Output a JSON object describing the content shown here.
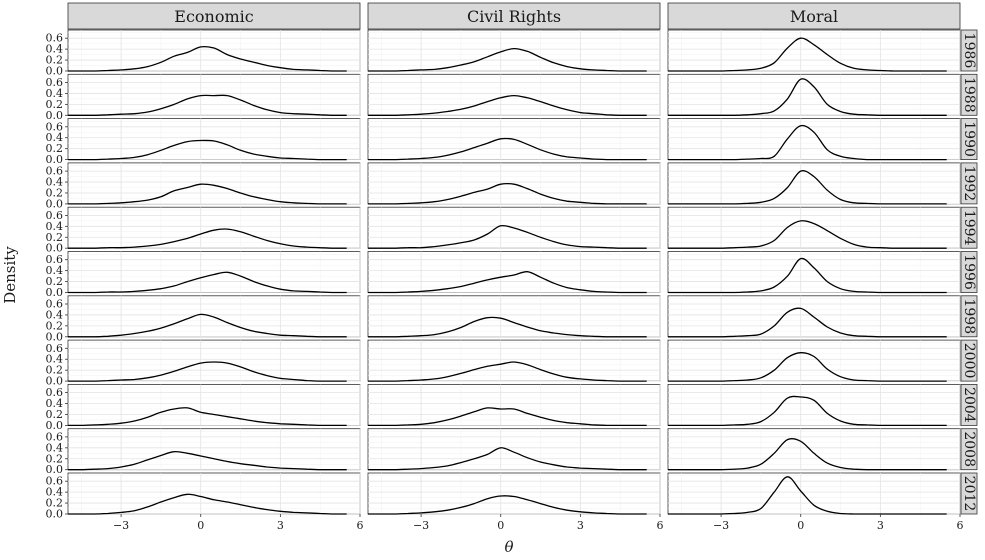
{
  "chart_data": {
    "type": "area",
    "xlabel": "θ",
    "ylabel": "Density",
    "xlim": [
      -5,
      6
    ],
    "xticks": [
      -3,
      0,
      3,
      6
    ],
    "ylim": [
      0,
      0.75
    ],
    "yticks": [
      0.0,
      0.2,
      0.4,
      0.6
    ],
    "ytick_labels": [
      "0.0",
      "0.2",
      "0.4",
      "0.6"
    ],
    "facet_columns": [
      "Economic",
      "Civil Rights",
      "Moral"
    ],
    "facet_rows": [
      "1986",
      "1988",
      "1990",
      "1992",
      "1994",
      "1996",
      "1998",
      "2000",
      "2004",
      "2008",
      "2012"
    ],
    "grid": true,
    "x": [
      -5,
      -4.5,
      -4,
      -3.5,
      -3,
      -2.5,
      -2,
      -1.5,
      -1,
      -0.5,
      0,
      0.5,
      1,
      1.5,
      2,
      2.5,
      3,
      3.5,
      4,
      4.5,
      5,
      5.5
    ],
    "panels": {
      "Economic": [
        {
          "year": "1986",
          "density": [
            0,
            0,
            0,
            0.01,
            0.02,
            0.04,
            0.08,
            0.16,
            0.27,
            0.34,
            0.44,
            0.42,
            0.3,
            0.22,
            0.16,
            0.1,
            0.06,
            0.03,
            0.02,
            0.01,
            0,
            0
          ]
        },
        {
          "year": "1988",
          "density": [
            0,
            0,
            0,
            0.01,
            0.02,
            0.03,
            0.06,
            0.12,
            0.2,
            0.3,
            0.36,
            0.36,
            0.36,
            0.28,
            0.18,
            0.1,
            0.05,
            0.03,
            0.02,
            0.01,
            0,
            0
          ]
        },
        {
          "year": "1990",
          "density": [
            0,
            0,
            0,
            0.01,
            0.02,
            0.04,
            0.09,
            0.17,
            0.26,
            0.33,
            0.35,
            0.34,
            0.27,
            0.17,
            0.1,
            0.06,
            0.03,
            0.02,
            0.01,
            0,
            0,
            0
          ]
        },
        {
          "year": "1992",
          "density": [
            0,
            0,
            0,
            0.01,
            0.02,
            0.04,
            0.07,
            0.13,
            0.24,
            0.3,
            0.36,
            0.34,
            0.28,
            0.2,
            0.13,
            0.08,
            0.04,
            0.02,
            0.01,
            0,
            0,
            0
          ]
        },
        {
          "year": "1994",
          "density": [
            0,
            0,
            0,
            0.01,
            0.01,
            0.02,
            0.04,
            0.07,
            0.12,
            0.18,
            0.26,
            0.33,
            0.35,
            0.3,
            0.22,
            0.14,
            0.08,
            0.04,
            0.02,
            0.01,
            0,
            0
          ]
        },
        {
          "year": "1996",
          "density": [
            0,
            0,
            0,
            0.01,
            0.01,
            0.02,
            0.04,
            0.07,
            0.12,
            0.2,
            0.27,
            0.33,
            0.37,
            0.3,
            0.2,
            0.12,
            0.06,
            0.03,
            0.02,
            0.01,
            0,
            0
          ]
        },
        {
          "year": "1998",
          "density": [
            0,
            0,
            0,
            0.01,
            0.03,
            0.06,
            0.1,
            0.16,
            0.24,
            0.33,
            0.41,
            0.36,
            0.26,
            0.17,
            0.1,
            0.06,
            0.03,
            0.02,
            0.01,
            0,
            0,
            0
          ]
        },
        {
          "year": "2000",
          "density": [
            0,
            0,
            0,
            0.01,
            0.02,
            0.03,
            0.06,
            0.11,
            0.18,
            0.26,
            0.33,
            0.35,
            0.33,
            0.26,
            0.17,
            0.1,
            0.05,
            0.03,
            0.01,
            0,
            0,
            0
          ]
        },
        {
          "year": "2004",
          "density": [
            0,
            0,
            0.01,
            0.02,
            0.04,
            0.08,
            0.15,
            0.24,
            0.3,
            0.32,
            0.24,
            0.2,
            0.16,
            0.12,
            0.08,
            0.05,
            0.03,
            0.02,
            0.01,
            0,
            0,
            0
          ]
        },
        {
          "year": "2008",
          "density": [
            0,
            0,
            0.01,
            0.02,
            0.05,
            0.1,
            0.18,
            0.26,
            0.33,
            0.3,
            0.25,
            0.2,
            0.15,
            0.11,
            0.08,
            0.05,
            0.03,
            0.02,
            0.01,
            0,
            0,
            0
          ]
        },
        {
          "year": "2012",
          "density": [
            0,
            0,
            0,
            0.01,
            0.03,
            0.06,
            0.13,
            0.22,
            0.3,
            0.36,
            0.32,
            0.26,
            0.22,
            0.17,
            0.12,
            0.08,
            0.05,
            0.03,
            0.02,
            0.01,
            0,
            0
          ]
        }
      ],
      "Civil Rights": [
        {
          "year": "1986",
          "density": [
            0,
            0,
            0,
            0.01,
            0.02,
            0.03,
            0.06,
            0.11,
            0.17,
            0.26,
            0.35,
            0.41,
            0.36,
            0.25,
            0.15,
            0.08,
            0.04,
            0.02,
            0.01,
            0,
            0,
            0
          ]
        },
        {
          "year": "1988",
          "density": [
            0,
            0,
            0,
            0.01,
            0.02,
            0.04,
            0.07,
            0.11,
            0.17,
            0.25,
            0.32,
            0.36,
            0.32,
            0.25,
            0.17,
            0.1,
            0.05,
            0.03,
            0.01,
            0,
            0,
            0
          ]
        },
        {
          "year": "1990",
          "density": [
            0,
            0,
            0,
            0.01,
            0.02,
            0.04,
            0.08,
            0.14,
            0.22,
            0.3,
            0.38,
            0.37,
            0.28,
            0.18,
            0.1,
            0.05,
            0.03,
            0.01,
            0,
            0,
            0,
            0
          ]
        },
        {
          "year": "1992",
          "density": [
            0,
            0,
            0,
            0.01,
            0.02,
            0.04,
            0.08,
            0.14,
            0.21,
            0.27,
            0.36,
            0.36,
            0.28,
            0.18,
            0.1,
            0.05,
            0.03,
            0.01,
            0,
            0,
            0,
            0
          ]
        },
        {
          "year": "1994",
          "density": [
            0,
            0,
            0,
            0.01,
            0.01,
            0.03,
            0.06,
            0.1,
            0.15,
            0.26,
            0.41,
            0.37,
            0.29,
            0.2,
            0.12,
            0.06,
            0.03,
            0.02,
            0.01,
            0,
            0,
            0
          ]
        },
        {
          "year": "1996",
          "density": [
            0,
            0,
            0,
            0.01,
            0.02,
            0.04,
            0.07,
            0.11,
            0.17,
            0.23,
            0.28,
            0.32,
            0.38,
            0.28,
            0.17,
            0.09,
            0.05,
            0.02,
            0.01,
            0,
            0,
            0
          ]
        },
        {
          "year": "1998",
          "density": [
            0,
            0,
            0,
            0.01,
            0.02,
            0.04,
            0.09,
            0.17,
            0.28,
            0.35,
            0.34,
            0.26,
            0.18,
            0.11,
            0.07,
            0.04,
            0.02,
            0.01,
            0,
            0,
            0,
            0
          ]
        },
        {
          "year": "2000",
          "density": [
            0,
            0,
            0,
            0.01,
            0.02,
            0.04,
            0.08,
            0.14,
            0.21,
            0.27,
            0.31,
            0.35,
            0.3,
            0.21,
            0.13,
            0.07,
            0.04,
            0.02,
            0.01,
            0,
            0,
            0
          ]
        },
        {
          "year": "2004",
          "density": [
            0,
            0,
            0,
            0.01,
            0.02,
            0.05,
            0.1,
            0.17,
            0.25,
            0.32,
            0.3,
            0.3,
            0.22,
            0.15,
            0.09,
            0.05,
            0.03,
            0.01,
            0,
            0,
            0,
            0
          ]
        },
        {
          "year": "2008",
          "density": [
            0,
            0,
            0,
            0.01,
            0.02,
            0.04,
            0.07,
            0.13,
            0.2,
            0.28,
            0.4,
            0.32,
            0.22,
            0.14,
            0.09,
            0.05,
            0.03,
            0.02,
            0.01,
            0,
            0,
            0
          ]
        },
        {
          "year": "2012",
          "density": [
            0,
            0,
            0,
            0.01,
            0.02,
            0.04,
            0.07,
            0.12,
            0.19,
            0.28,
            0.33,
            0.32,
            0.26,
            0.19,
            0.12,
            0.07,
            0.04,
            0.02,
            0.01,
            0,
            0,
            0
          ]
        }
      ],
      "Moral": [
        {
          "year": "1986",
          "density": [
            0,
            0,
            0,
            0,
            0,
            0.01,
            0.02,
            0.05,
            0.15,
            0.42,
            0.6,
            0.48,
            0.3,
            0.14,
            0.05,
            0.02,
            0.01,
            0,
            0,
            0,
            0,
            0
          ]
        },
        {
          "year": "1988",
          "density": [
            0,
            0,
            0,
            0,
            0,
            0,
            0.01,
            0.03,
            0.08,
            0.3,
            0.66,
            0.52,
            0.2,
            0.07,
            0.02,
            0.01,
            0,
            0,
            0,
            0,
            0,
            0
          ]
        },
        {
          "year": "1990",
          "density": [
            0,
            0,
            0,
            0,
            0,
            0,
            0.01,
            0.02,
            0.06,
            0.38,
            0.62,
            0.5,
            0.18,
            0.06,
            0.02,
            0,
            0,
            0,
            0,
            0,
            0,
            0
          ]
        },
        {
          "year": "1992",
          "density": [
            0,
            0,
            0,
            0,
            0,
            0,
            0.01,
            0.03,
            0.1,
            0.3,
            0.6,
            0.5,
            0.25,
            0.08,
            0.02,
            0.01,
            0,
            0,
            0,
            0,
            0,
            0
          ]
        },
        {
          "year": "1994",
          "density": [
            0,
            0,
            0,
            0,
            0,
            0.01,
            0.02,
            0.04,
            0.14,
            0.38,
            0.5,
            0.45,
            0.32,
            0.18,
            0.07,
            0.02,
            0.01,
            0,
            0,
            0,
            0,
            0
          ]
        },
        {
          "year": "1996",
          "density": [
            0,
            0,
            0,
            0,
            0,
            0,
            0.01,
            0.03,
            0.1,
            0.3,
            0.62,
            0.45,
            0.2,
            0.07,
            0.02,
            0.01,
            0,
            0,
            0,
            0,
            0,
            0
          ]
        },
        {
          "year": "1998",
          "density": [
            0,
            0,
            0,
            0,
            0,
            0.01,
            0.02,
            0.05,
            0.2,
            0.45,
            0.52,
            0.36,
            0.18,
            0.07,
            0.02,
            0.01,
            0,
            0,
            0,
            0,
            0,
            0
          ]
        },
        {
          "year": "2000",
          "density": [
            0,
            0,
            0,
            0,
            0,
            0.01,
            0.02,
            0.06,
            0.2,
            0.43,
            0.52,
            0.45,
            0.22,
            0.08,
            0.02,
            0.01,
            0,
            0,
            0,
            0,
            0,
            0
          ]
        },
        {
          "year": "2004",
          "density": [
            0,
            0,
            0,
            0,
            0,
            0.01,
            0.02,
            0.07,
            0.24,
            0.5,
            0.52,
            0.46,
            0.22,
            0.08,
            0.02,
            0.01,
            0,
            0,
            0,
            0,
            0,
            0
          ]
        },
        {
          "year": "2008",
          "density": [
            0,
            0,
            0,
            0,
            0,
            0.01,
            0.03,
            0.1,
            0.3,
            0.55,
            0.52,
            0.3,
            0.12,
            0.04,
            0.01,
            0,
            0,
            0,
            0,
            0,
            0,
            0
          ]
        },
        {
          "year": "2012",
          "density": [
            0,
            0,
            0,
            0,
            0,
            0.01,
            0.03,
            0.1,
            0.4,
            0.68,
            0.42,
            0.16,
            0.05,
            0.01,
            0,
            0,
            0,
            0,
            0,
            0,
            0,
            0
          ]
        }
      ]
    }
  }
}
